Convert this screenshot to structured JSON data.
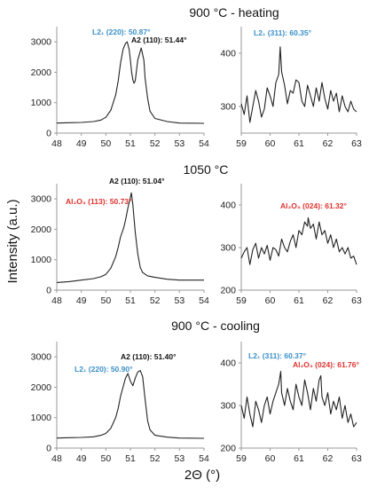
{
  "figure": {
    "ylabel": "Intensity (a.u.)",
    "xlabel": "2Θ (°)"
  },
  "rows": [
    {
      "title": "900 °C - heating"
    },
    {
      "title": "1050 °C"
    },
    {
      "title": "900 °C - cooling"
    }
  ],
  "colors": {
    "line": "#222222",
    "l21": "#3a8fc8",
    "a2": "#111111",
    "al2o3": "#e0322e",
    "axis": "#999999"
  },
  "chart_data": [
    {
      "type": "line",
      "panel": "900 °C - heating, left",
      "xlim": [
        48,
        54
      ],
      "ylim": [
        0,
        3500
      ],
      "xticks": [
        48,
        49,
        50,
        51,
        52,
        53,
        54
      ],
      "yticks": [
        0,
        1000,
        2000,
        3000
      ],
      "x": [
        48.0,
        48.5,
        49.0,
        49.5,
        49.8,
        50.0,
        50.2,
        50.4,
        50.5,
        50.6,
        50.7,
        50.8,
        50.87,
        50.95,
        51.0,
        51.05,
        51.1,
        51.15,
        51.2,
        51.3,
        51.44,
        51.55,
        51.6,
        51.7,
        51.8,
        52.0,
        52.5,
        53.0,
        54.0
      ],
      "y": [
        330,
        340,
        350,
        380,
        430,
        520,
        750,
        1250,
        1700,
        2300,
        2750,
        2950,
        3000,
        2750,
        2400,
        2000,
        1750,
        1640,
        1720,
        2400,
        2800,
        2400,
        1800,
        1150,
        720,
        480,
        380,
        330,
        320
      ],
      "annotations": [
        {
          "text": "L2₁ (220): 50.87°",
          "color": "l21"
        },
        {
          "text": "A2 (110): 51.44°",
          "color": "a2"
        }
      ]
    },
    {
      "type": "line",
      "panel": "900 °C - heating, right",
      "xlim": [
        59,
        63
      ],
      "ylim": [
        250,
        450
      ],
      "xticks": [
        59,
        60,
        61,
        62,
        63
      ],
      "yticks": [
        300,
        400
      ],
      "x": [
        59.0,
        59.1,
        59.2,
        59.3,
        59.4,
        59.5,
        59.6,
        59.7,
        59.8,
        59.9,
        60.0,
        60.1,
        60.2,
        60.3,
        60.35,
        60.4,
        60.5,
        60.6,
        60.7,
        60.8,
        60.9,
        61.0,
        61.1,
        61.2,
        61.3,
        61.4,
        61.5,
        61.6,
        61.7,
        61.8,
        61.9,
        62.0,
        62.1,
        62.2,
        62.3,
        62.4,
        62.5,
        62.6,
        62.7,
        62.8,
        62.9,
        63.0
      ],
      "y": [
        305,
        285,
        320,
        270,
        300,
        330,
        310,
        280,
        295,
        335,
        320,
        300,
        345,
        360,
        412,
        365,
        340,
        305,
        330,
        325,
        350,
        345,
        310,
        300,
        340,
        320,
        300,
        335,
        310,
        345,
        315,
        295,
        330,
        310,
        325,
        290,
        320,
        300,
        290,
        310,
        295,
        290
      ],
      "annotations": [
        {
          "text": "L2₁ (311): 60.35°",
          "color": "l21"
        }
      ]
    },
    {
      "type": "line",
      "panel": "1050 °C, left",
      "xlim": [
        48,
        54
      ],
      "ylim": [
        0,
        3500
      ],
      "xticks": [
        48,
        49,
        50,
        51,
        52,
        53,
        54
      ],
      "yticks": [
        0,
        1000,
        2000,
        3000
      ],
      "x": [
        48.0,
        48.5,
        49.0,
        49.5,
        49.8,
        50.0,
        50.2,
        50.4,
        50.5,
        50.6,
        50.73,
        50.8,
        50.9,
        51.0,
        51.04,
        51.1,
        51.2,
        51.3,
        51.4,
        51.5,
        51.7,
        52.0,
        52.5,
        53.0,
        54.0
      ],
      "y": [
        250,
        280,
        330,
        380,
        440,
        520,
        720,
        1100,
        1400,
        1750,
        2050,
        2300,
        2700,
        3050,
        3200,
        2800,
        1900,
        1200,
        750,
        580,
        470,
        420,
        360,
        330,
        330
      ],
      "annotations": [
        {
          "text": "A2 (110): 51.04°",
          "color": "a2"
        },
        {
          "text": "Al₂O₃ (113): 50.73°",
          "color": "al2o3"
        }
      ]
    },
    {
      "type": "line",
      "panel": "1050 °C, right",
      "xlim": [
        59,
        63
      ],
      "ylim": [
        200,
        450
      ],
      "xticks": [
        59,
        60,
        61,
        62,
        63
      ],
      "yticks": [
        200,
        300,
        400
      ],
      "x": [
        59.0,
        59.1,
        59.2,
        59.3,
        59.4,
        59.5,
        59.6,
        59.7,
        59.8,
        59.9,
        60.0,
        60.1,
        60.2,
        60.3,
        60.4,
        60.5,
        60.6,
        60.7,
        60.8,
        60.9,
        61.0,
        61.1,
        61.2,
        61.3,
        61.32,
        61.4,
        61.5,
        61.6,
        61.7,
        61.8,
        61.9,
        62.0,
        62.1,
        62.2,
        62.3,
        62.4,
        62.5,
        62.6,
        62.7,
        62.8,
        62.9,
        63.0
      ],
      "y": [
        275,
        290,
        300,
        260,
        295,
        310,
        275,
        300,
        285,
        305,
        270,
        300,
        295,
        280,
        320,
        300,
        290,
        315,
        330,
        300,
        340,
        330,
        360,
        350,
        370,
        345,
        355,
        320,
        360,
        330,
        340,
        310,
        330,
        300,
        320,
        290,
        300,
        285,
        300,
        275,
        280,
        260
      ],
      "annotations": [
        {
          "text": "Al₂O₃ (024): 61.32°",
          "color": "al2o3"
        }
      ]
    },
    {
      "type": "line",
      "panel": "900 °C - cooling, left",
      "xlim": [
        48,
        54
      ],
      "ylim": [
        0,
        3500
      ],
      "xticks": [
        48,
        49,
        50,
        51,
        52,
        53,
        54
      ],
      "yticks": [
        0,
        1000,
        2000,
        3000
      ],
      "x": [
        48.0,
        48.5,
        49.0,
        49.5,
        49.8,
        50.0,
        50.2,
        50.4,
        50.5,
        50.6,
        50.7,
        50.8,
        50.9,
        51.0,
        51.1,
        51.2,
        51.3,
        51.4,
        51.5,
        51.6,
        51.7,
        51.8,
        52.0,
        52.5,
        53.0,
        54.0
      ],
      "y": [
        330,
        340,
        350,
        370,
        420,
        480,
        650,
        1000,
        1300,
        1700,
        2000,
        2300,
        2450,
        2200,
        2050,
        2300,
        2500,
        2550,
        2350,
        1600,
        900,
        600,
        420,
        360,
        330,
        320
      ],
      "annotations": [
        {
          "text": "A2 (110): 51.40°",
          "color": "a2"
        },
        {
          "text": "L2₁ (220): 50.90°",
          "color": "l21"
        }
      ]
    },
    {
      "type": "line",
      "panel": "900 °C - cooling, right",
      "xlim": [
        59,
        63
      ],
      "ylim": [
        200,
        450
      ],
      "xticks": [
        59,
        60,
        61,
        62,
        63
      ],
      "yticks": [
        200,
        300,
        400
      ],
      "x": [
        59.0,
        59.1,
        59.2,
        59.3,
        59.4,
        59.5,
        59.6,
        59.7,
        59.8,
        59.9,
        60.0,
        60.1,
        60.2,
        60.3,
        60.37,
        60.4,
        60.5,
        60.6,
        60.7,
        60.8,
        60.9,
        61.0,
        61.1,
        61.2,
        61.3,
        61.4,
        61.5,
        61.6,
        61.7,
        61.76,
        61.8,
        61.9,
        62.0,
        62.1,
        62.2,
        62.3,
        62.4,
        62.5,
        62.6,
        62.7,
        62.8,
        62.9,
        63.0
      ],
      "y": [
        300,
        270,
        320,
        280,
        250,
        310,
        290,
        260,
        300,
        320,
        280,
        310,
        330,
        350,
        380,
        330,
        300,
        340,
        310,
        290,
        350,
        320,
        300,
        360,
        330,
        290,
        340,
        310,
        360,
        370,
        320,
        300,
        330,
        280,
        310,
        290,
        320,
        270,
        300,
        260,
        280,
        250,
        260
      ],
      "annotations": [
        {
          "text": "L2₁ (311): 60.37°",
          "color": "l21"
        },
        {
          "text": "Al₂O₃ (024): 61.76°",
          "color": "al2o3"
        }
      ]
    }
  ]
}
